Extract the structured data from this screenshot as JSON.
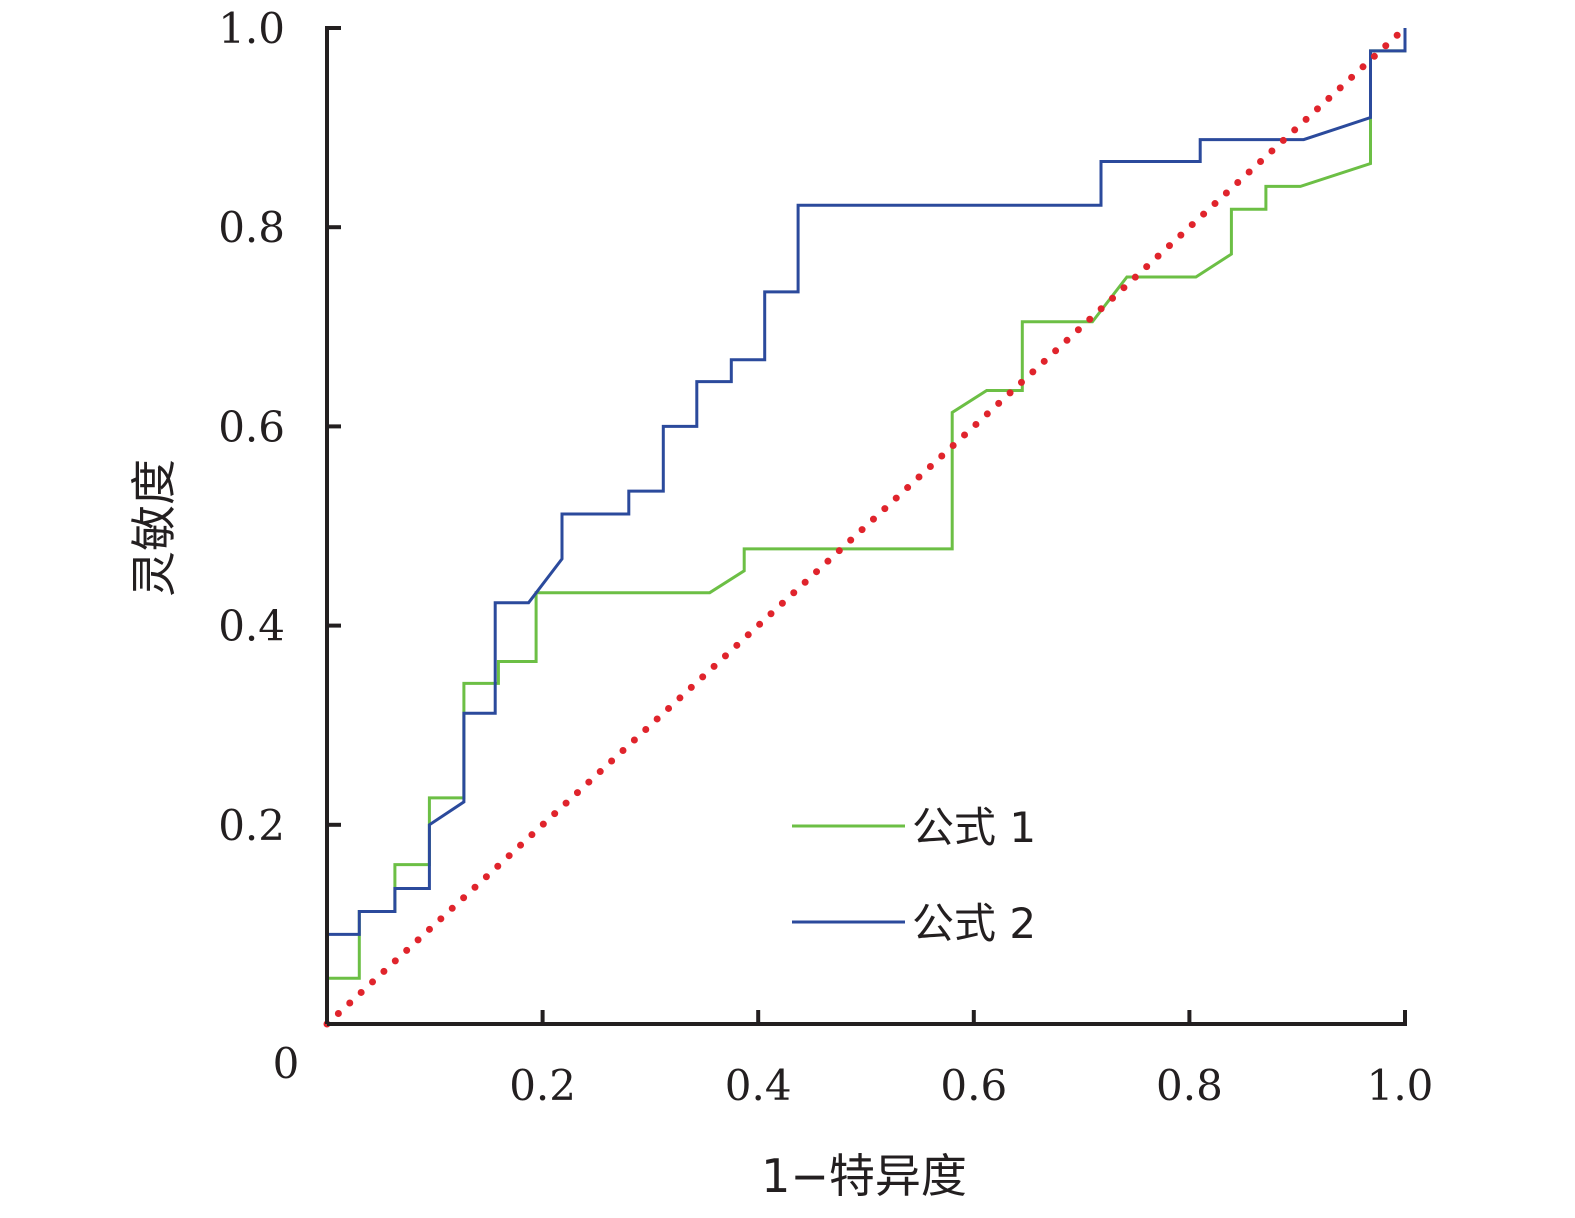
{
  "chart_data": {
    "type": "line",
    "title": "",
    "xlabel": "1−特异度",
    "ylabel": "灵敏度",
    "xlim": [
      0,
      1.0
    ],
    "ylim": [
      0,
      1.0
    ],
    "origin_label": "0",
    "x_ticks": [
      {
        "value": 0.2,
        "label": "0.2"
      },
      {
        "value": 0.4,
        "label": "0.4"
      },
      {
        "value": 0.6,
        "label": "0.6"
      },
      {
        "value": 0.8,
        "label": "0.8"
      },
      {
        "value": 1.0,
        "label": "1.0"
      }
    ],
    "y_ticks": [
      {
        "value": 0.2,
        "label": "0.2"
      },
      {
        "value": 0.4,
        "label": "0.4"
      },
      {
        "value": 0.6,
        "label": "0.6"
      },
      {
        "value": 0.8,
        "label": "0.8"
      },
      {
        "value": 1.0,
        "label": "1.0"
      }
    ],
    "grid": false,
    "legend_position": "bottom-right",
    "series": [
      {
        "name": "公式 1",
        "color": "#6cbf45",
        "style": "solid",
        "points": [
          [
            0,
            0.046
          ],
          [
            0.03,
            0.046
          ],
          [
            0.03,
            0.113
          ],
          [
            0.063,
            0.113
          ],
          [
            0.063,
            0.16
          ],
          [
            0.095,
            0.16
          ],
          [
            0.095,
            0.227
          ],
          [
            0.127,
            0.227
          ],
          [
            0.127,
            0.342
          ],
          [
            0.159,
            0.342
          ],
          [
            0.159,
            0.364
          ],
          [
            0.194,
            0.364
          ],
          [
            0.194,
            0.433
          ],
          [
            0.355,
            0.433
          ],
          [
            0.387,
            0.455
          ],
          [
            0.387,
            0.477
          ],
          [
            0.58,
            0.477
          ],
          [
            0.58,
            0.614
          ],
          [
            0.612,
            0.636
          ],
          [
            0.645,
            0.636
          ],
          [
            0.645,
            0.705
          ],
          [
            0.71,
            0.705
          ],
          [
            0.742,
            0.75
          ],
          [
            0.806,
            0.75
          ],
          [
            0.839,
            0.773
          ],
          [
            0.839,
            0.818
          ],
          [
            0.871,
            0.818
          ],
          [
            0.871,
            0.841
          ],
          [
            0.903,
            0.841
          ],
          [
            0.968,
            0.864
          ],
          [
            0.968,
            0.977
          ],
          [
            1.0,
            0.977
          ],
          [
            1.0,
            1.0
          ]
        ]
      },
      {
        "name": "公式 2",
        "color": "#2b4a9c",
        "style": "solid",
        "points": [
          [
            0,
            0.09
          ],
          [
            0.03,
            0.09
          ],
          [
            0.03,
            0.113
          ],
          [
            0.063,
            0.113
          ],
          [
            0.063,
            0.136
          ],
          [
            0.095,
            0.136
          ],
          [
            0.095,
            0.2
          ],
          [
            0.127,
            0.223
          ],
          [
            0.127,
            0.312
          ],
          [
            0.156,
            0.312
          ],
          [
            0.156,
            0.423
          ],
          [
            0.187,
            0.423
          ],
          [
            0.218,
            0.467
          ],
          [
            0.218,
            0.512
          ],
          [
            0.28,
            0.512
          ],
          [
            0.28,
            0.535
          ],
          [
            0.312,
            0.535
          ],
          [
            0.312,
            0.6
          ],
          [
            0.343,
            0.6
          ],
          [
            0.343,
            0.645
          ],
          [
            0.375,
            0.645
          ],
          [
            0.375,
            0.667
          ],
          [
            0.406,
            0.667
          ],
          [
            0.406,
            0.735
          ],
          [
            0.437,
            0.735
          ],
          [
            0.437,
            0.822
          ],
          [
            0.718,
            0.822
          ],
          [
            0.718,
            0.866
          ],
          [
            0.81,
            0.866
          ],
          [
            0.81,
            0.888
          ],
          [
            0.906,
            0.888
          ],
          [
            0.968,
            0.91
          ],
          [
            0.968,
            0.977
          ],
          [
            1.0,
            0.977
          ],
          [
            1.0,
            1.0
          ]
        ]
      },
      {
        "name": "",
        "color": "#e0242c",
        "style": "dotted",
        "points": [
          [
            0,
            0
          ],
          [
            1.0,
            1.0
          ]
        ]
      }
    ]
  }
}
